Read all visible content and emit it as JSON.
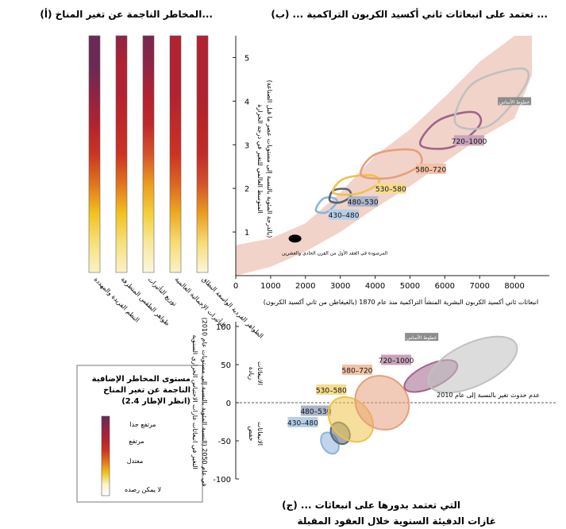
{
  "panel_a": {
    "title": "(أ) المخاطر الناجمة عن تغير المناخ...",
    "bars": [
      {
        "label": "النظم الفريدة والمهددة",
        "stops": [
          "#6a2a55",
          "#6a2a55",
          "#8f2446",
          "#b22230",
          "#cc3322",
          "#e0741c",
          "#f1c21c",
          "#f6e07c",
          "#fbf2c8"
        ]
      },
      {
        "label": "ظواهر الطقس المتطرفة",
        "stops": [
          "#8f2446",
          "#b22230",
          "#b22230",
          "#c0282b",
          "#cc3322",
          "#e0741c",
          "#f1c21c",
          "#f6e07c",
          "#fbf2c8"
        ]
      },
      {
        "label": "توزيع التأثيرات",
        "stops": [
          "#7a2650",
          "#8f2446",
          "#b22230",
          "#c0282b",
          "#d4532a",
          "#ea9c1e",
          "#f3cf3a",
          "#f8e89c",
          "#fcf6dc"
        ]
      },
      {
        "label": "التأثيرات الإجمالية العالمية",
        "stops": [
          "#b22230",
          "#b22230",
          "#b22230",
          "#bf2a2a",
          "#cc3322",
          "#dd6422",
          "#ecaa22",
          "#f6dc74",
          "#fbf1c6"
        ]
      },
      {
        "label": "الظواهر الفردية الواسعة النطاق",
        "stops": [
          "#b22230",
          "#b22230",
          "#b22230",
          "#b82626",
          "#c22a28",
          "#d4532a",
          "#ea9c1e",
          "#f6dc74",
          "#fcf6dc"
        ]
      }
    ]
  },
  "legend": {
    "title_lines": [
      "مستوى المخاطر الإضافية",
      "الناجمة عن تغير المناخ",
      "(انظر الإطار 2.4)"
    ],
    "levels": [
      "مرتفع جدا",
      "مرتفع",
      "معتدل",
      "لا يمكن رصده"
    ],
    "gradient": [
      "#6a2a55",
      "#8f2446",
      "#b22230",
      "#cc3322",
      "#e0741c",
      "#f1c21c",
      "#fbf2c8",
      "#ffffff"
    ]
  },
  "chart_data": [
    {
      "type": "scatter",
      "title": "(ب) ... تعتمد على انبعاثات ثاني أكسيد الكربون التراكمية ...",
      "xlabel": "انبعاثات ثاني أكسيد الكربون البشرية المنشأ التراكمية منذ عام 1870 (بالغيغاطن من ثاني أكسيد الكربون)",
      "ylabel_lines": [
        "المتوسط العالمي للتغير في درجة الحرارة",
        "(بالدرجة المئوية بالنسبة إلى مستويات عصر ما قبل الصناعة)"
      ],
      "xlim": [
        0,
        9000
      ],
      "ylim": [
        0,
        5.5
      ],
      "xticks": [
        0,
        1000,
        2000,
        3000,
        4000,
        5000,
        6000,
        7000,
        8000
      ],
      "yticks": [
        1,
        2,
        3,
        4,
        5
      ],
      "band": {
        "upper": [
          [
            0,
            0.7
          ],
          [
            1000,
            0.85
          ],
          [
            2000,
            1.2
          ],
          [
            3000,
            1.9
          ],
          [
            4000,
            2.75
          ],
          [
            5000,
            3.35
          ],
          [
            6000,
            4.1
          ],
          [
            7000,
            4.9
          ],
          [
            8000,
            5.5
          ],
          [
            8500,
            5.5
          ]
        ],
        "lower": [
          [
            8500,
            4.6
          ],
          [
            8000,
            3.6
          ],
          [
            7000,
            3.15
          ],
          [
            6000,
            2.6
          ],
          [
            5000,
            2.05
          ],
          [
            4000,
            1.55
          ],
          [
            3000,
            1.0
          ],
          [
            2000,
            0.55
          ],
          [
            1000,
            0.2
          ],
          [
            0,
            0.0
          ]
        ],
        "color": "#f0cbbf"
      },
      "observed": {
        "x": 1700,
        "y": 0.85,
        "label": "المرصودة في العقد الأول من القرن الحادي والعشرين"
      },
      "scenarios": [
        {
          "name": "430–480",
          "color": "#8cb3dc",
          "label_bg": "#b6cfe9",
          "points": [
            [
              2300,
              1.5
            ],
            [
              2500,
              1.76
            ],
            [
              2800,
              1.78
            ],
            [
              2900,
              1.68
            ],
            [
              2600,
              1.45
            ]
          ],
          "tag_at": [
            3100,
            1.4
          ]
        },
        {
          "name": "480–530",
          "color": "#5a6478",
          "label_bg": "#aab3c8",
          "points": [
            [
              2700,
              1.72
            ],
            [
              2800,
              1.95
            ],
            [
              3200,
              1.98
            ],
            [
              3300,
              1.82
            ],
            [
              3000,
              1.68
            ]
          ],
          "tag_at": [
            3650,
            1.7
          ]
        },
        {
          "name": "530–580",
          "color": "#eec24a",
          "label_bg": "#f6dc8c",
          "points": [
            [
              2800,
              1.9
            ],
            [
              3100,
              2.22
            ],
            [
              3900,
              2.3
            ],
            [
              4100,
              2.12
            ],
            [
              3500,
              1.88
            ]
          ],
          "tag_at": [
            4450,
            2.0
          ]
        },
        {
          "name": "580–720",
          "color": "#e6a07c",
          "label_bg": "#f3c2a7",
          "points": [
            [
              3600,
              2.3
            ],
            [
              4000,
              2.78
            ],
            [
              5100,
              2.88
            ],
            [
              5300,
              2.55
            ],
            [
              4500,
              2.25
            ]
          ],
          "tag_at": [
            5600,
            2.45
          ]
        },
        {
          "name": "720–1000",
          "color": "#a0658a",
          "label_bg": "#c9a2bc",
          "points": [
            [
              5300,
              3.0
            ],
            [
              5800,
              3.55
            ],
            [
              6800,
              3.75
            ],
            [
              7000,
              3.45
            ],
            [
              6200,
              2.95
            ]
          ],
          "tag_at": [
            6700,
            3.1
          ]
        },
        {
          "name": "خطوط الأساس",
          "color": "#c0c0c0",
          "label_bg": "#8c8c8c",
          "points": [
            [
              6300,
              3.5
            ],
            [
              6800,
              4.4
            ],
            [
              8200,
              4.75
            ],
            [
              8300,
              4.35
            ],
            [
              7300,
              3.45
            ]
          ],
          "tag_at": [
            8000,
            4.0
          ]
        }
      ]
    },
    {
      "type": "scatter",
      "title_lines": [
        "(ج) ... التي تعتمد بدورها على انبعاثات",
        "غازات الدفيئة السنوية خلال العقود المقبلة"
      ],
      "ylabel_lines": [
        "التغير في انبعاثات غازات الاحتباس الحراري السنوية",
        "في عام 2050 (النسبة المئوية بالنسبة إلى مستويات عام 2010)"
      ],
      "ylim": [
        -100,
        100
      ],
      "yticks": [
        -100,
        -50,
        0,
        50,
        100
      ],
      "zero_note": "عدم حدوث تغير بالنسبة إلى عام 2010",
      "increase_label": [
        "زيادة",
        "الانبعاثات"
      ],
      "decrease_label": [
        "خفض",
        "الانبعاثات"
      ],
      "scenarios": [
        {
          "name": "430–480",
          "color": "#8cb3dc",
          "label_bg": "#b6cfe9",
          "center": [
            2700,
            -53
          ],
          "rx": 0.025,
          "ry": 15
        },
        {
          "name": "480–530",
          "color": "#5a6478",
          "label_bg": "#aab3c8",
          "center": [
            3000,
            -40
          ],
          "rx": 0.028,
          "ry": 15
        },
        {
          "name": "530–580",
          "color": "#eec24a",
          "label_bg": "#f6dc8c",
          "center": [
            3300,
            -22
          ],
          "rx": 0.06,
          "ry": 33
        },
        {
          "name": "580–720",
          "color": "#e6a07c",
          "label_bg": "#f3c2a7",
          "center": [
            4200,
            0
          ],
          "rx": 0.08,
          "ry": 37
        },
        {
          "name": "720–1000",
          "color": "#a0658a",
          "label_bg": "#c9a2bc",
          "center": [
            5600,
            35
          ],
          "rx": 0.09,
          "ry": 15
        },
        {
          "name": "خطوط الأساس",
          "color": "#c0c0c0",
          "label_bg": "#8c8c8c",
          "center": [
            6800,
            50
          ],
          "rx": 0.15,
          "ry": 28
        }
      ]
    }
  ]
}
